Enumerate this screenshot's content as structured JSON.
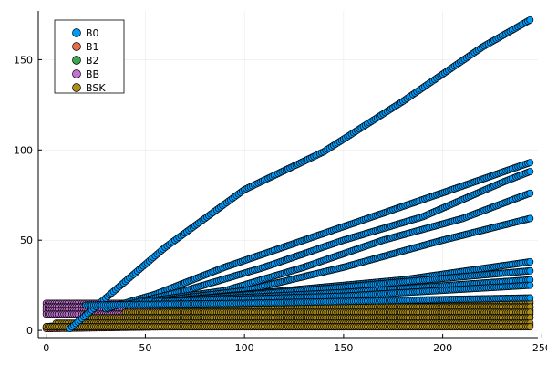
{
  "chart_data": {
    "type": "scatter",
    "title": "",
    "xlabel": "",
    "ylabel": "",
    "xlim": [
      -4,
      248
    ],
    "ylim": [
      -4,
      177
    ],
    "xticks": [
      0,
      50,
      100,
      150,
      200,
      250
    ],
    "yticks": [
      0,
      50,
      100,
      150
    ],
    "grid": true,
    "legend_position": "top-left",
    "series": [
      {
        "name": "B0",
        "color": "#009AFA",
        "curves": [
          {
            "x": [
              12,
              60,
              100,
              140,
              180,
              220,
              244
            ],
            "y": [
              1,
              46,
              78,
              99,
              127,
              157,
              172
            ]
          },
          {
            "x": [
              30,
              55,
              90,
              130,
              170,
              210,
              244
            ],
            "y": [
              12,
              20,
              35,
              50,
              65,
              80,
              93
            ]
          },
          {
            "x": [
              40,
              70,
              110,
              150,
              190,
              230,
              244
            ],
            "y": [
              14,
              22,
              35,
              50,
              63,
              82,
              88
            ]
          },
          {
            "x": [
              50,
              90,
              130,
              170,
              210,
              244
            ],
            "y": [
              16,
              22,
              35,
              50,
              62,
              76
            ]
          },
          {
            "x": [
              55,
              100,
              150,
              200,
              244
            ],
            "y": [
              16,
              22,
              35,
              50,
              62
            ]
          },
          {
            "x": [
              60,
              120,
              180,
              244
            ],
            "y": [
              16,
              22,
              28,
              38
            ]
          },
          {
            "x": [
              60,
              150,
              244
            ],
            "y": [
              16,
              24,
              33
            ]
          },
          {
            "x": [
              60,
              150,
              244
            ],
            "y": [
              16,
              21,
              28
            ]
          },
          {
            "x": [
              60,
              150,
              244
            ],
            "y": [
              16,
              19,
              25
            ]
          },
          {
            "x": [
              20,
              100,
              244
            ],
            "y": [
              14,
              15,
              18
            ]
          }
        ]
      },
      {
        "name": "B1",
        "color": "#E36F47",
        "curves": [
          {
            "x": [
              0,
              60,
              150,
              244
            ],
            "y": [
              1,
              2,
              2,
              3
            ]
          }
        ]
      },
      {
        "name": "B2",
        "color": "#3EA44E",
        "curves": [
          {
            "x": [
              0,
              30,
              100,
              244
            ],
            "y": [
              2,
              5,
              6,
              7
            ]
          }
        ]
      },
      {
        "name": "BB",
        "color": "#C371D2",
        "curves": [
          {
            "x": [
              0,
              60,
              150,
              244
            ],
            "y": [
              15,
              15,
              15,
              15
            ]
          },
          {
            "x": [
              0,
              60,
              150,
              244
            ],
            "y": [
              13,
              13,
              13,
              13
            ]
          },
          {
            "x": [
              0,
              60,
              150,
              244
            ],
            "y": [
              11,
              11,
              11,
              11
            ]
          },
          {
            "x": [
              0,
              60,
              150,
              244
            ],
            "y": [
              9,
              9,
              9,
              9
            ]
          }
        ]
      },
      {
        "name": "BSK",
        "color": "#AC8E18",
        "curves": [
          {
            "x": [
              75,
              150,
              244
            ],
            "y": [
              16,
              16,
              16
            ]
          },
          {
            "x": [
              60,
              150,
              244
            ],
            "y": [
              13,
              13,
              13
            ]
          },
          {
            "x": [
              40,
              150,
              244
            ],
            "y": [
              10,
              10,
              10
            ]
          },
          {
            "x": [
              20,
              150,
              244
            ],
            "y": [
              7,
              7,
              7
            ]
          },
          {
            "x": [
              5,
              150,
              244
            ],
            "y": [
              4,
              4,
              4
            ]
          },
          {
            "x": [
              0,
              150,
              244
            ],
            "y": [
              2,
              2,
              2
            ]
          }
        ]
      }
    ]
  }
}
